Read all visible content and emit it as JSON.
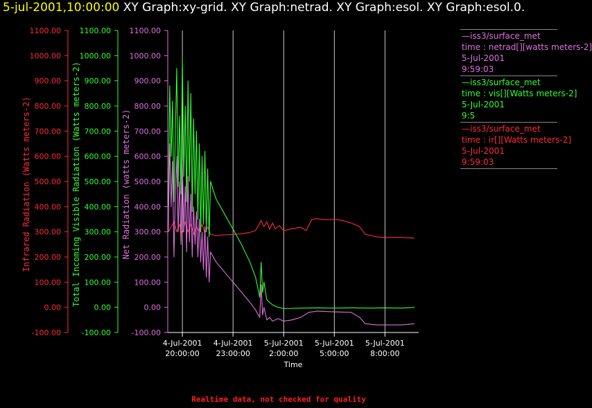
{
  "header": {
    "date": "5-jul-2001,10:00:00",
    "rest": "  XY Graph:xy-grid.  XY Graph:netrad.  XY Graph:esol.  XY Graph:esol.0."
  },
  "footer": "Realtime data, not checked for quality",
  "colors": {
    "ir": "#ff2a3c",
    "vis": "#30ff30",
    "net": "#e070e0",
    "grid": "#ffffff",
    "axis": "#ffffff"
  },
  "legend": [
    {
      "lines": [
        "—iss3/surface_met",
        "time : netrad[][watts meters-2]",
        "5-Jul-2001",
        "9:59:03"
      ],
      "color": "#e070e0"
    },
    {
      "lines": [
        "—iss3/surface_met",
        "time : vis[][Watts meters-2]",
        "5-Jul-2001",
        "9:5"
      ],
      "color": "#30ff30"
    },
    {
      "lines": [
        "—iss3/surface_met",
        "time : ir[][Watts meters-2]",
        "5-Jul-2001",
        "9:59:03"
      ],
      "color": "#ff2a3c"
    }
  ],
  "chart_data": {
    "type": "line",
    "xlabel": "Time",
    "xlim": [
      "2001-07-04T19:08:00",
      "2001-07-05T10:00:00"
    ],
    "ylim": [
      -100,
      1100
    ],
    "y_ticks": [
      "1100.00",
      "1000.00",
      "900.00",
      "800.00",
      "700.00",
      "600.00",
      "500.00",
      "400.00",
      "300.00",
      "200.00",
      "100.00",
      "0.00",
      "-100.00"
    ],
    "x_ticks": [
      {
        "t": "2001-07-04T20:00:00",
        "line1": "4-Jul-2001",
        "line2": "20:00:00"
      },
      {
        "t": "2001-07-04T23:00:00",
        "line1": "4-Jul-2001",
        "line2": "23:00:00"
      },
      {
        "t": "2001-07-05T02:00:00",
        "line1": "5-Jul-2001",
        "line2": "2:00:00"
      },
      {
        "t": "2001-07-05T05:00:00",
        "line1": "5-Jul-2001",
        "line2": "5:00:00"
      },
      {
        "t": "2001-07-05T08:00:00",
        "line1": "5-Jul-2001",
        "line2": "8:00:00"
      }
    ],
    "grid": true,
    "axes": [
      {
        "label": "Infrared Radiation (Watts meters-2)",
        "color": "#ff2a3c"
      },
      {
        "label": "Total Incoming Visible Radiation (Watts meters-2)",
        "color": "#30ff30"
      },
      {
        "label": "Net Radiation (watts meters-2)",
        "color": "#e070e0"
      }
    ],
    "series": [
      {
        "name": "ir",
        "color": "#ff2a3c",
        "points": [
          [
            "2001-07-04T19:10:00",
            300
          ],
          [
            "2001-07-04T19:20:00",
            320
          ],
          [
            "2001-07-04T19:30:00",
            340
          ],
          [
            "2001-07-04T19:40:00",
            300
          ],
          [
            "2001-07-04T19:50:00",
            330
          ],
          [
            "2001-07-04T20:00:00",
            290
          ],
          [
            "2001-07-04T20:10:00",
            340
          ],
          [
            "2001-07-04T20:20:00",
            300
          ],
          [
            "2001-07-04T20:30:00",
            330
          ],
          [
            "2001-07-04T20:40:00",
            290
          ],
          [
            "2001-07-04T20:50:00",
            320
          ],
          [
            "2001-07-04T21:00:00",
            300
          ],
          [
            "2001-07-04T21:10:00",
            330
          ],
          [
            "2001-07-04T21:20:00",
            295
          ],
          [
            "2001-07-04T21:30:00",
            320
          ],
          [
            "2001-07-04T21:40:00",
            290
          ],
          [
            "2001-07-04T22:00:00",
            285
          ],
          [
            "2001-07-04T22:30:00",
            288
          ],
          [
            "2001-07-04T23:00:00",
            290
          ],
          [
            "2001-07-04T23:30:00",
            292
          ],
          [
            "2001-07-05T00:00:00",
            298
          ],
          [
            "2001-07-05T00:20:00",
            305
          ],
          [
            "2001-07-05T00:40:00",
            345
          ],
          [
            "2001-07-05T00:50:00",
            320
          ],
          [
            "2001-07-05T01:00:00",
            340
          ],
          [
            "2001-07-05T01:10:00",
            310
          ],
          [
            "2001-07-05T01:20:00",
            335
          ],
          [
            "2001-07-05T01:30:00",
            312
          ],
          [
            "2001-07-05T01:45:00",
            325
          ],
          [
            "2001-07-05T02:00:00",
            305
          ],
          [
            "2001-07-05T02:30:00",
            312
          ],
          [
            "2001-07-05T03:00:00",
            318
          ],
          [
            "2001-07-05T03:20:00",
            305
          ],
          [
            "2001-07-05T03:40:00",
            350
          ],
          [
            "2001-07-05T04:00:00",
            352
          ],
          [
            "2001-07-05T04:30:00",
            348
          ],
          [
            "2001-07-05T05:00:00",
            350
          ],
          [
            "2001-07-05T05:30:00",
            345
          ],
          [
            "2001-07-05T06:00:00",
            335
          ],
          [
            "2001-07-05T06:30:00",
            320
          ],
          [
            "2001-07-05T06:50:00",
            290
          ],
          [
            "2001-07-05T07:30:00",
            280
          ],
          [
            "2001-07-05T08:00:00",
            278
          ],
          [
            "2001-07-05T09:00:00",
            278
          ],
          [
            "2001-07-05T09:45:00",
            275
          ]
        ]
      },
      {
        "name": "vis",
        "color": "#30ff30",
        "points": [
          [
            "2001-07-04T19:10:00",
            400
          ],
          [
            "2001-07-04T19:15:00",
            880
          ],
          [
            "2001-07-04T19:20:00",
            600
          ],
          [
            "2001-07-04T19:25:00",
            820
          ],
          [
            "2001-07-04T19:30:00",
            420
          ],
          [
            "2001-07-04T19:35:00",
            700
          ],
          [
            "2001-07-04T19:40:00",
            950
          ],
          [
            "2001-07-04T19:45:00",
            480
          ],
          [
            "2001-07-04T19:50:00",
            760
          ],
          [
            "2001-07-04T19:55:00",
            450
          ],
          [
            "2001-07-04T20:00:00",
            990
          ],
          [
            "2001-07-04T20:05:00",
            520
          ],
          [
            "2001-07-04T20:10:00",
            800
          ],
          [
            "2001-07-04T20:15:00",
            420
          ],
          [
            "2001-07-04T20:20:00",
            900
          ],
          [
            "2001-07-04T20:25:00",
            500
          ],
          [
            "2001-07-04T20:30:00",
            850
          ],
          [
            "2001-07-04T20:35:00",
            380
          ],
          [
            "2001-07-04T20:40:00",
            750
          ],
          [
            "2001-07-04T20:45:00",
            450
          ],
          [
            "2001-07-04T20:50:00",
            700
          ],
          [
            "2001-07-04T20:55:00",
            350
          ],
          [
            "2001-07-04T21:00:00",
            650
          ],
          [
            "2001-07-04T21:05:00",
            300
          ],
          [
            "2001-07-04T21:10:00",
            600
          ],
          [
            "2001-07-04T21:15:00",
            330
          ],
          [
            "2001-07-04T21:20:00",
            620
          ],
          [
            "2001-07-04T21:25:00",
            300
          ],
          [
            "2001-07-04T21:30:00",
            550
          ],
          [
            "2001-07-04T21:35:00",
            280
          ],
          [
            "2001-07-04T21:40:00",
            500
          ],
          [
            "2001-07-04T22:00:00",
            430
          ],
          [
            "2001-07-04T22:30:00",
            370
          ],
          [
            "2001-07-04T23:00:00",
            310
          ],
          [
            "2001-07-04T23:30:00",
            250
          ],
          [
            "2001-07-05T00:00:00",
            180
          ],
          [
            "2001-07-05T00:20:00",
            120
          ],
          [
            "2001-07-05T00:35:00",
            40
          ],
          [
            "2001-07-05T00:40:00",
            180
          ],
          [
            "2001-07-05T00:45:00",
            60
          ],
          [
            "2001-07-05T00:50:00",
            100
          ],
          [
            "2001-07-05T01:00:00",
            30
          ],
          [
            "2001-07-05T01:20:00",
            10
          ],
          [
            "2001-07-05T01:40:00",
            0
          ],
          [
            "2001-07-05T02:00:00",
            -5
          ],
          [
            "2001-07-05T03:00:00",
            -3
          ],
          [
            "2001-07-05T04:00:00",
            -2
          ],
          [
            "2001-07-05T05:00:00",
            -3
          ],
          [
            "2001-07-05T06:00:00",
            -2
          ],
          [
            "2001-07-05T07:00:00",
            -3
          ],
          [
            "2001-07-05T08:00:00",
            -2
          ],
          [
            "2001-07-05T09:00:00",
            -3
          ],
          [
            "2001-07-05T09:45:00",
            0
          ]
        ]
      },
      {
        "name": "net",
        "color": "#e070e0",
        "points": [
          [
            "2001-07-04T19:10:00",
            300
          ],
          [
            "2001-07-04T19:15:00",
            650
          ],
          [
            "2001-07-04T19:20:00",
            400
          ],
          [
            "2001-07-04T19:25:00",
            580
          ],
          [
            "2001-07-04T19:30:00",
            200
          ],
          [
            "2001-07-04T19:35:00",
            450
          ],
          [
            "2001-07-04T19:40:00",
            600
          ],
          [
            "2001-07-04T19:45:00",
            300
          ],
          [
            "2001-07-04T19:50:00",
            500
          ],
          [
            "2001-07-04T19:55:00",
            250
          ],
          [
            "2001-07-04T20:00:00",
            580
          ],
          [
            "2001-07-04T20:05:00",
            300
          ],
          [
            "2001-07-04T20:10:00",
            480
          ],
          [
            "2001-07-04T20:15:00",
            220
          ],
          [
            "2001-07-04T20:20:00",
            520
          ],
          [
            "2001-07-04T20:25:00",
            260
          ],
          [
            "2001-07-04T20:30:00",
            450
          ],
          [
            "2001-07-04T20:35:00",
            200
          ],
          [
            "2001-07-04T20:40:00",
            400
          ],
          [
            "2001-07-04T20:45:00",
            250
          ],
          [
            "2001-07-04T20:50:00",
            380
          ],
          [
            "2001-07-04T20:55:00",
            200
          ],
          [
            "2001-07-04T21:00:00",
            350
          ],
          [
            "2001-07-04T21:05:00",
            180
          ],
          [
            "2001-07-04T21:10:00",
            300
          ],
          [
            "2001-07-04T21:15:00",
            150
          ],
          [
            "2001-07-04T21:20:00",
            320
          ],
          [
            "2001-07-04T21:25:00",
            120
          ],
          [
            "2001-07-04T21:30:00",
            280
          ],
          [
            "2001-07-04T21:35:00",
            100
          ],
          [
            "2001-07-04T21:40:00",
            220
          ],
          [
            "2001-07-04T22:00:00",
            180
          ],
          [
            "2001-07-04T22:30:00",
            140
          ],
          [
            "2001-07-04T23:00:00",
            100
          ],
          [
            "2001-07-04T23:30:00",
            60
          ],
          [
            "2001-07-05T00:00:00",
            20
          ],
          [
            "2001-07-05T00:20:00",
            -10
          ],
          [
            "2001-07-05T00:35:00",
            -40
          ],
          [
            "2001-07-05T00:40:00",
            90
          ],
          [
            "2001-07-05T00:45:00",
            -30
          ],
          [
            "2001-07-05T00:50:00",
            0
          ],
          [
            "2001-07-05T01:00:00",
            -50
          ],
          [
            "2001-07-05T01:10:00",
            -40
          ],
          [
            "2001-07-05T01:20:00",
            -55
          ],
          [
            "2001-07-05T01:40:00",
            -45
          ],
          [
            "2001-07-05T02:00:00",
            -55
          ],
          [
            "2001-07-05T02:30:00",
            -50
          ],
          [
            "2001-07-05T03:00:00",
            -40
          ],
          [
            "2001-07-05T03:30:00",
            -20
          ],
          [
            "2001-07-05T04:00:00",
            -15
          ],
          [
            "2001-07-05T05:00:00",
            -18
          ],
          [
            "2001-07-05T06:00:00",
            -20
          ],
          [
            "2001-07-05T06:30:00",
            -40
          ],
          [
            "2001-07-05T06:50:00",
            -65
          ],
          [
            "2001-07-05T07:30:00",
            -70
          ],
          [
            "2001-07-05T08:00:00",
            -70
          ],
          [
            "2001-07-05T09:00:00",
            -70
          ],
          [
            "2001-07-05T09:45:00",
            -65
          ]
        ]
      }
    ]
  }
}
